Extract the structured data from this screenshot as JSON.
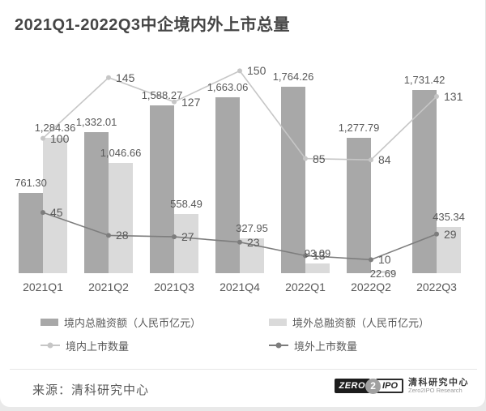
{
  "title": "2021Q1-2022Q3中企境内外上市总量",
  "chart_data": {
    "type": "combo-bar-line",
    "categories": [
      "2021Q1",
      "2021Q2",
      "2021Q3",
      "2021Q4",
      "2022Q1",
      "2022Q2",
      "2022Q3"
    ],
    "series": [
      {
        "name": "境内总融资额（人民币亿元）",
        "type": "bar",
        "color": "#a8a8a8",
        "values": [
          761.3,
          1332.01,
          1588.27,
          1663.06,
          1764.26,
          1277.79,
          1731.42
        ],
        "labels": [
          "761.30",
          "1,332.01",
          "1,588.27",
          "1,663.06",
          "1,764.26",
          "1,277.79",
          "1,731.42"
        ]
      },
      {
        "name": "境外总融资额（人民币亿元）",
        "type": "bar",
        "color": "#dadada",
        "values": [
          1284.36,
          1046.66,
          558.49,
          327.95,
          93.09,
          22.69,
          435.34
        ],
        "labels": [
          "1,284.36",
          "1,046.66",
          "558.49",
          "327.95",
          "93.09",
          "22.69",
          "435.34"
        ]
      },
      {
        "name": "境内上市数量",
        "type": "line",
        "color": "#c6c6c6",
        "values": [
          100,
          145,
          127,
          150,
          85,
          84,
          131
        ],
        "labels": [
          "100",
          "145",
          "127",
          "150",
          "85",
          "84",
          "131"
        ]
      },
      {
        "name": "境外上市数量",
        "type": "line",
        "color": "#7d7d7d",
        "values": [
          45,
          28,
          27,
          23,
          13,
          10,
          29
        ],
        "labels": [
          "45",
          "28",
          "27",
          "23",
          "13",
          "10",
          "29"
        ]
      }
    ],
    "legend_position": "bottom",
    "gridlines": false,
    "value_axes_hidden": true
  },
  "footer": {
    "source": "来源：清科研究中心",
    "logo": {
      "zero": "ZERO",
      "two": "2",
      "ipo": "IPO",
      "name_cn": "清科研究中心",
      "name_en": "Zero2IPO Research"
    }
  }
}
